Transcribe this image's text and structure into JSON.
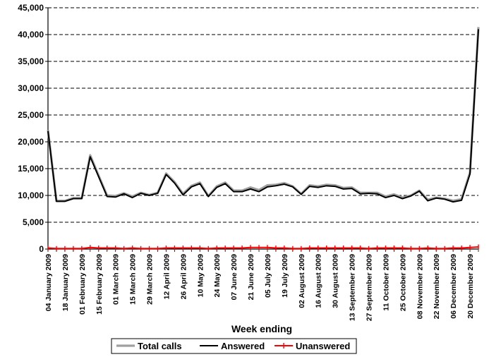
{
  "chart_data": {
    "type": "line",
    "title": "",
    "xlabel": "Week ending",
    "ylabel": "",
    "ylim": [
      0,
      45000
    ],
    "yticks": [
      0,
      5000,
      10000,
      15000,
      20000,
      25000,
      30000,
      35000,
      40000,
      45000
    ],
    "ytick_labels": [
      "0",
      "5,000",
      "10,000",
      "15,000",
      "20,000",
      "25,000",
      "30,000",
      "35,000",
      "40,000",
      "45,000"
    ],
    "grid": "horizontal-dashed",
    "legend_position": "bottom",
    "x_labels": [
      "04 January 2009",
      "18 January 2009",
      "01 February 2009",
      "15 February 2009",
      "01 March 2009",
      "15 March 2009",
      "29 March 2009",
      "12 April 2009",
      "26 April 2009",
      "10 May 2009",
      "24 May 2009",
      "07 June 2009",
      "21 June 2009",
      "05 July 2009",
      "19 July 2009",
      "02 August 2009",
      "16 August 2009",
      "30 August 2009",
      "13 September 2009",
      "27 September 2009",
      "11 October 2009",
      "25 October 2009",
      "08 November 2009",
      "22 November 2009",
      "06 December 2009",
      "20 December 2009"
    ],
    "series": [
      {
        "name": "Total calls",
        "color": "#a0a0a0",
        "values": [
          22200,
          9000,
          9000,
          9500,
          9500,
          17500,
          13700,
          10000,
          9900,
          10400,
          9800,
          10500,
          10100,
          10500,
          14100,
          12500,
          10300,
          11800,
          12400,
          9900,
          11700,
          12400,
          10900,
          10900,
          11500,
          11000,
          11900,
          12000,
          12300,
          11700,
          10300,
          11900,
          11700,
          12000,
          11900,
          11400,
          11500,
          10500,
          10500,
          10500,
          9800,
          10200,
          9600,
          10000,
          10900,
          9200,
          9600,
          9400,
          9000,
          9300,
          14300,
          41400
        ]
      },
      {
        "name": "Answered",
        "color": "#000000",
        "values": [
          22000,
          8900,
          8900,
          9400,
          9400,
          17200,
          13500,
          9800,
          9700,
          10300,
          9600,
          10400,
          10000,
          10400,
          13900,
          12300,
          10100,
          11600,
          12200,
          9800,
          11500,
          12200,
          10700,
          10700,
          11200,
          10700,
          11600,
          11800,
          12100,
          11600,
          10200,
          11700,
          11500,
          11800,
          11700,
          11200,
          11300,
          10300,
          10400,
          10300,
          9600,
          10000,
          9400,
          9900,
          10800,
          9000,
          9500,
          9300,
          8800,
          9100,
          14000,
          41000
        ]
      },
      {
        "name": "Unanswered",
        "color": "#ff0000",
        "values": [
          200,
          100,
          100,
          100,
          100,
          300,
          200,
          200,
          200,
          100,
          200,
          100,
          100,
          100,
          200,
          200,
          200,
          200,
          200,
          100,
          200,
          200,
          200,
          200,
          300,
          300,
          300,
          200,
          200,
          100,
          100,
          200,
          200,
          200,
          200,
          200,
          200,
          200,
          100,
          200,
          200,
          200,
          200,
          100,
          100,
          200,
          100,
          100,
          200,
          200,
          300,
          400
        ]
      }
    ]
  }
}
